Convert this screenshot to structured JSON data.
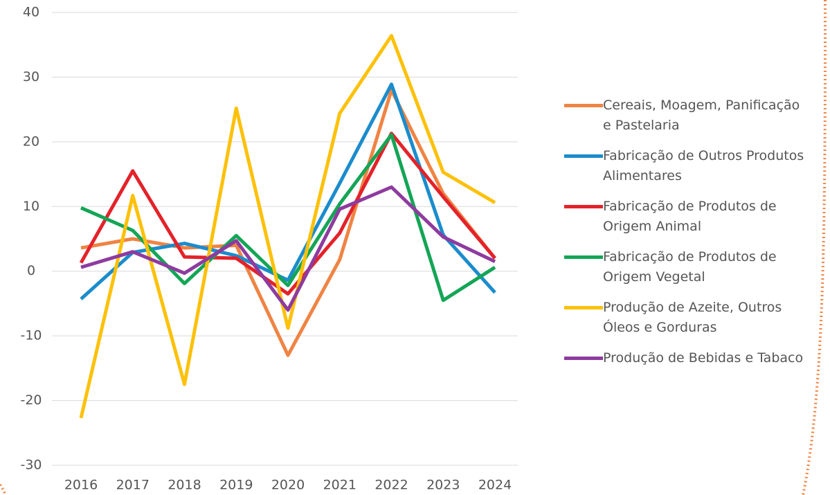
{
  "chart_data": {
    "type": "line",
    "x": [
      2016,
      2017,
      2018,
      2019,
      2020,
      2021,
      2022,
      2023,
      2024
    ],
    "ylim": [
      -30,
      40
    ],
    "yticks": [
      -30,
      -20,
      -10,
      0,
      10,
      20,
      30,
      40
    ],
    "grid": true,
    "series": [
      {
        "name": "Cereais, Moagem, Panificação e Pastelaria",
        "color": "#ef8444",
        "values": [
          3.6,
          5.0,
          3.6,
          4.0,
          -13.0,
          1.8,
          28.0,
          12.0,
          2.0
        ]
      },
      {
        "name": "Fabricação de Outros Produtos Alimentares",
        "color": "#1b8ccc",
        "values": [
          -4.3,
          2.9,
          4.3,
          2.4,
          -1.4,
          13.6,
          28.9,
          5.6,
          -3.3
        ]
      },
      {
        "name": "Fabricação de Produtos de Origem Animal",
        "color": "#e3222a",
        "values": [
          1.3,
          15.5,
          2.2,
          2.0,
          -3.5,
          5.9,
          21.3,
          11.5,
          2.0
        ]
      },
      {
        "name": "Fabricação de Produtos de Origem Vegetal",
        "color": "#14a556",
        "values": [
          9.8,
          6.3,
          -1.9,
          5.5,
          -2.2,
          10.4,
          21.1,
          -4.5,
          0.6
        ]
      },
      {
        "name": "Produção de Azeite, Outros Óleos e Gorduras",
        "color": "#fdc10a",
        "values": [
          -22.7,
          11.7,
          -17.5,
          25.2,
          -8.8,
          24.4,
          36.4,
          15.3,
          10.6
        ]
      },
      {
        "name": "Produção de Bebidas e Tabaco",
        "color": "#8e3b9f",
        "values": [
          0.6,
          3.0,
          -0.3,
          4.7,
          -6.0,
          9.6,
          13.0,
          5.3,
          1.5
        ]
      }
    ]
  }
}
